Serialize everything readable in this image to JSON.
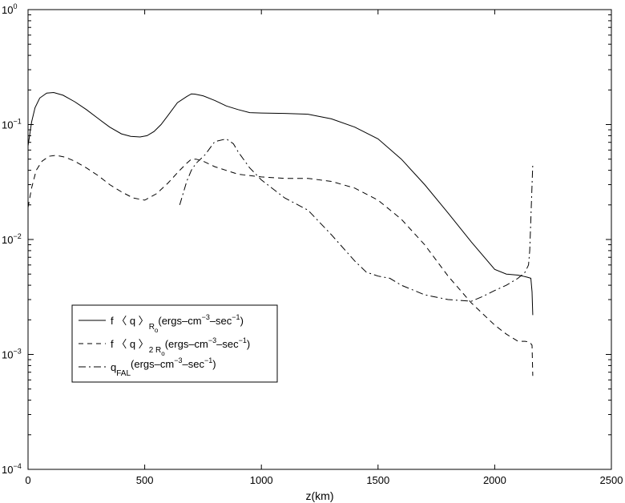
{
  "chart_data": {
    "type": "line",
    "xlabel": "z(km)",
    "ylabel": "",
    "title": "",
    "xlim": [
      0,
      2500
    ],
    "ylim": [
      0.0001,
      1
    ],
    "yscale": "log",
    "grid": false,
    "legend_position": "lower-left",
    "x_ticks": [
      "0",
      "500",
      "1000",
      "1500",
      "2000",
      "2500"
    ],
    "y_ticks": [
      {
        "base": "10",
        "exp": "0"
      },
      {
        "base": "10",
        "exp": "−1"
      },
      {
        "base": "10",
        "exp": "−2"
      },
      {
        "base": "10",
        "exp": "−3"
      },
      {
        "base": "10",
        "exp": "−4"
      }
    ],
    "series": [
      {
        "legend": {
          "main": "f 〈 q 〉",
          "sub": "R",
          "subsub": "o",
          "unit": "(ergs–cm",
          "exp1": "−3",
          "mid": "–sec",
          "exp2": "−1",
          "end": ")"
        },
        "style": "solid",
        "color": "#000000",
        "x": [
          0,
          15,
          30,
          50,
          80,
          110,
          150,
          200,
          250,
          300,
          350,
          400,
          440,
          480,
          510,
          540,
          570,
          600,
          640,
          680,
          700,
          715,
          750,
          800,
          850,
          900,
          950,
          1000,
          1100,
          1200,
          1300,
          1400,
          1500,
          1600,
          1700,
          1800,
          1900,
          2000,
          2050,
          2100,
          2120,
          2140,
          2155,
          2160,
          2163
        ],
        "y": [
          0.065,
          0.105,
          0.14,
          0.17,
          0.188,
          0.19,
          0.18,
          0.158,
          0.135,
          0.113,
          0.095,
          0.083,
          0.079,
          0.078,
          0.08,
          0.087,
          0.1,
          0.12,
          0.155,
          0.175,
          0.185,
          0.184,
          0.178,
          0.162,
          0.145,
          0.135,
          0.127,
          0.126,
          0.125,
          0.123,
          0.112,
          0.095,
          0.075,
          0.05,
          0.03,
          0.017,
          0.0095,
          0.0055,
          0.005,
          0.0049,
          0.0048,
          0.0047,
          0.0046,
          0.0035,
          0.0022
        ]
      },
      {
        "legend": {
          "main": "f 〈 q 〉",
          "sub": "2 R",
          "subsub": "o",
          "unit": "(ergs–cm",
          "exp1": "−3",
          "mid": "–sec",
          "exp2": "−1",
          "end": ")"
        },
        "style": "dashed",
        "color": "#000000",
        "x": [
          0,
          15,
          35,
          60,
          90,
          120,
          160,
          200,
          250,
          300,
          350,
          400,
          450,
          500,
          550,
          600,
          650,
          680,
          700,
          720,
          750,
          800,
          900,
          1000,
          1100,
          1200,
          1300,
          1400,
          1500,
          1600,
          1700,
          1800,
          1900,
          2000,
          2050,
          2100,
          2130,
          2150,
          2160,
          2163
        ],
        "y": [
          0.019,
          0.028,
          0.04,
          0.048,
          0.053,
          0.054,
          0.052,
          0.048,
          0.042,
          0.036,
          0.03,
          0.026,
          0.023,
          0.022,
          0.025,
          0.031,
          0.04,
          0.046,
          0.05,
          0.05,
          0.048,
          0.043,
          0.037,
          0.035,
          0.034,
          0.034,
          0.032,
          0.028,
          0.022,
          0.015,
          0.009,
          0.0048,
          0.0028,
          0.0018,
          0.0015,
          0.0013,
          0.0013,
          0.00128,
          0.0012,
          0.00065
        ]
      },
      {
        "legend": {
          "main": "q",
          "sub": "FAL",
          "subsub": "",
          "unit": "(ergs–cm",
          "exp1": "−3",
          "mid": "–sec",
          "exp2": "−1",
          "end": ")"
        },
        "style": "dashdot",
        "color": "#000000",
        "x": [
          650,
          680,
          700,
          720,
          760,
          800,
          850,
          880,
          900,
          950,
          1000,
          1100,
          1200,
          1300,
          1400,
          1450,
          1500,
          1550,
          1600,
          1700,
          1800,
          1900,
          1950,
          2000,
          2050,
          2100,
          2130,
          2145,
          2150,
          2155,
          2160,
          2163
        ],
        "y": [
          0.02,
          0.032,
          0.04,
          0.046,
          0.055,
          0.071,
          0.075,
          0.068,
          0.058,
          0.042,
          0.033,
          0.023,
          0.018,
          0.011,
          0.0065,
          0.0052,
          0.0048,
          0.0046,
          0.004,
          0.0033,
          0.003,
          0.0029,
          0.0032,
          0.0036,
          0.004,
          0.0046,
          0.0052,
          0.006,
          0.008,
          0.015,
          0.03,
          0.045
        ]
      }
    ]
  }
}
